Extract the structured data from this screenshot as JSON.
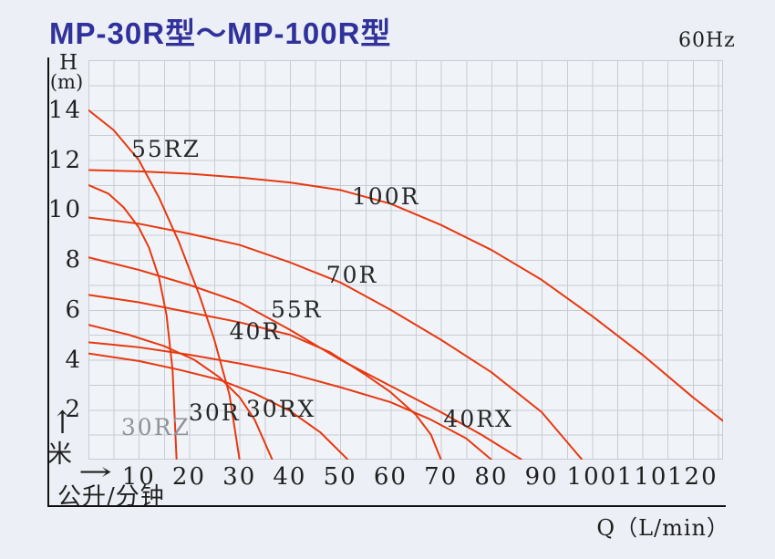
{
  "page": {
    "title": "MP-30R型～MP-100R型",
    "frequency": "60Hz"
  },
  "icons": {
    "up_arrow": "↑",
    "right_arrow": "→"
  },
  "axes": {
    "y_name": "H",
    "y_unit": "(m)",
    "y_unit_cn": "米",
    "x_unit_cn": "公升/分钟",
    "x_axis_label": "Q（L/min）",
    "y_ticks": [
      14,
      12,
      10,
      8,
      6,
      4,
      2
    ],
    "x_ticks": [
      10,
      20,
      30,
      40,
      50,
      60,
      70,
      80,
      90,
      100,
      110,
      120
    ]
  },
  "colors": {
    "curve": "#e8380f",
    "grid": "#c7ccd5",
    "title": "#31319b",
    "muted_label": "#909298"
  },
  "chart_data": {
    "type": "line",
    "title": "MP-30R型～MP-100R型",
    "subtitle": "60Hz",
    "xlabel": "Q（L/min）",
    "ylabel": "H (m)",
    "xlim": [
      0,
      126
    ],
    "ylim": [
      0,
      16
    ],
    "grid": {
      "x_step": 5,
      "y_step": 1,
      "visible": true
    },
    "series": [
      {
        "name": "100R",
        "points": [
          [
            0,
            11.6
          ],
          [
            10,
            11.55
          ],
          [
            20,
            11.45
          ],
          [
            30,
            11.3
          ],
          [
            40,
            11.1
          ],
          [
            50,
            10.8
          ],
          [
            60,
            10.25
          ],
          [
            70,
            9.4
          ],
          [
            80,
            8.4
          ],
          [
            90,
            7.2
          ],
          [
            100,
            5.75
          ],
          [
            110,
            4.2
          ],
          [
            120,
            2.5
          ],
          [
            126,
            1.55
          ]
        ]
      },
      {
        "name": "70R",
        "points": [
          [
            0,
            9.7
          ],
          [
            10,
            9.45
          ],
          [
            20,
            9.05
          ],
          [
            30,
            8.6
          ],
          [
            40,
            7.9
          ],
          [
            50,
            7.1
          ],
          [
            60,
            6.0
          ],
          [
            70,
            4.8
          ],
          [
            80,
            3.5
          ],
          [
            90,
            1.9
          ],
          [
            98,
            0
          ]
        ]
      },
      {
        "name": "55R",
        "points": [
          [
            0,
            8.1
          ],
          [
            10,
            7.6
          ],
          [
            20,
            7.0
          ],
          [
            30,
            6.3
          ],
          [
            40,
            5.2
          ],
          [
            50,
            4.0
          ],
          [
            60,
            2.95
          ],
          [
            70,
            1.9
          ],
          [
            78,
            1.0
          ],
          [
            86,
            0
          ]
        ]
      },
      {
        "name": "55RZ",
        "points": [
          [
            0,
            14
          ],
          [
            5,
            13.2
          ],
          [
            10,
            12.0
          ],
          [
            14,
            10.5
          ],
          [
            18,
            8.7
          ],
          [
            22,
            6.6
          ],
          [
            25,
            4.8
          ],
          [
            28,
            2.6
          ],
          [
            30,
            0
          ]
        ]
      },
      {
        "name": "40R",
        "points": [
          [
            0,
            6.6
          ],
          [
            10,
            6.3
          ],
          [
            20,
            5.9
          ],
          [
            30,
            5.5
          ],
          [
            40,
            5.0
          ],
          [
            48,
            4.3
          ],
          [
            55,
            3.4
          ],
          [
            60,
            2.7
          ],
          [
            65,
            1.8
          ],
          [
            68,
            1.0
          ],
          [
            70,
            0
          ]
        ]
      },
      {
        "name": "40RX",
        "points": [
          [
            0,
            4.7
          ],
          [
            10,
            4.5
          ],
          [
            20,
            4.2
          ],
          [
            30,
            3.85
          ],
          [
            40,
            3.45
          ],
          [
            50,
            2.9
          ],
          [
            60,
            2.3
          ],
          [
            68,
            1.6
          ],
          [
            75,
            0.85
          ],
          [
            80,
            0
          ]
        ]
      },
      {
        "name": "30R",
        "points": [
          [
            0,
            5.4
          ],
          [
            8,
            5.0
          ],
          [
            15,
            4.55
          ],
          [
            21,
            4.0
          ],
          [
            26,
            3.3
          ],
          [
            30,
            2.5
          ],
          [
            33,
            1.6
          ],
          [
            36.5,
            0
          ]
        ]
      },
      {
        "name": "30RX",
        "points": [
          [
            0,
            4.25
          ],
          [
            10,
            3.95
          ],
          [
            18,
            3.6
          ],
          [
            26,
            3.2
          ],
          [
            33,
            2.65
          ],
          [
            40,
            1.95
          ],
          [
            46,
            1.1
          ],
          [
            51.5,
            0
          ]
        ]
      },
      {
        "name": "30RZ",
        "points": [
          [
            0,
            11.0
          ],
          [
            4,
            10.65
          ],
          [
            7,
            10.1
          ],
          [
            10,
            9.3
          ],
          [
            12,
            8.5
          ],
          [
            14,
            7.3
          ],
          [
            15.5,
            5.8
          ],
          [
            16.7,
            3.6
          ],
          [
            17.5,
            0
          ]
        ]
      }
    ],
    "labels": [
      {
        "text": "55RZ",
        "q": 8.5,
        "h": 12.9
      },
      {
        "text": "100R",
        "q": 52.3,
        "h": 11.0
      },
      {
        "text": "70R",
        "q": 47.2,
        "h": 7.85
      },
      {
        "text": "55R",
        "q": 36.2,
        "h": 6.45
      },
      {
        "text": "40R",
        "q": 28.0,
        "h": 5.6
      },
      {
        "text": "30R",
        "q": 19.9,
        "h": 2.35
      },
      {
        "text": "30RX",
        "q": 31.3,
        "h": 2.5
      },
      {
        "text": "30RZ",
        "q": 6.5,
        "h": 1.75,
        "muted": true
      },
      {
        "text": "40RX",
        "q": 70.5,
        "h": 2.1
      }
    ]
  }
}
